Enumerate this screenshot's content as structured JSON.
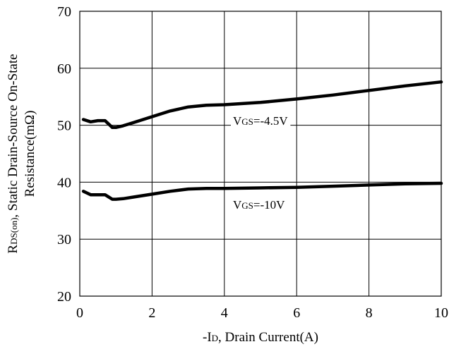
{
  "chart_data": {
    "type": "line",
    "xlim": [
      0,
      10
    ],
    "ylim": [
      20,
      70
    ],
    "x_ticks": [
      0,
      2,
      4,
      6,
      8,
      10
    ],
    "y_ticks": [
      20,
      30,
      40,
      50,
      60,
      70
    ],
    "grid": true,
    "xlabel": {
      "prefix": "-I",
      "sub": "D",
      "suffix": ", Drain Current(A)"
    },
    "ylabel": {
      "line1_prefix": "R",
      "line1_sub": "DS(on)",
      "line1_suffix": ", Static Drain-Source On-State",
      "line2": "Resistance(mΩ)"
    },
    "series": [
      {
        "name": "VGS=-4.5V",
        "label": {
          "prefix": "V",
          "sub": "GS",
          "suffix": "=-4.5V"
        },
        "x": [
          0.1,
          0.3,
          0.5,
          0.7,
          0.8,
          0.9,
          1.0,
          1.2,
          1.5,
          2.0,
          2.5,
          3.0,
          3.5,
          4.0,
          5.0,
          6.0,
          7.0,
          8.0,
          9.0,
          10.0
        ],
        "values": [
          51.0,
          50.6,
          50.8,
          50.8,
          50.2,
          49.6,
          49.6,
          49.9,
          50.5,
          51.5,
          52.5,
          53.2,
          53.5,
          53.6,
          54.0,
          54.6,
          55.3,
          56.1,
          56.9,
          57.6
        ]
      },
      {
        "name": "VGS=-10V",
        "label": {
          "prefix": "V",
          "sub": "GS",
          "suffix": "=-10V"
        },
        "x": [
          0.1,
          0.3,
          0.5,
          0.7,
          0.8,
          0.9,
          1.0,
          1.2,
          1.5,
          2.0,
          2.5,
          3.0,
          3.5,
          4.0,
          5.0,
          6.0,
          7.0,
          8.0,
          9.0,
          10.0
        ],
        "values": [
          38.4,
          37.8,
          37.8,
          37.8,
          37.4,
          37.0,
          37.0,
          37.1,
          37.4,
          37.9,
          38.4,
          38.8,
          38.9,
          38.9,
          39.0,
          39.1,
          39.3,
          39.5,
          39.7,
          39.8
        ]
      }
    ]
  }
}
